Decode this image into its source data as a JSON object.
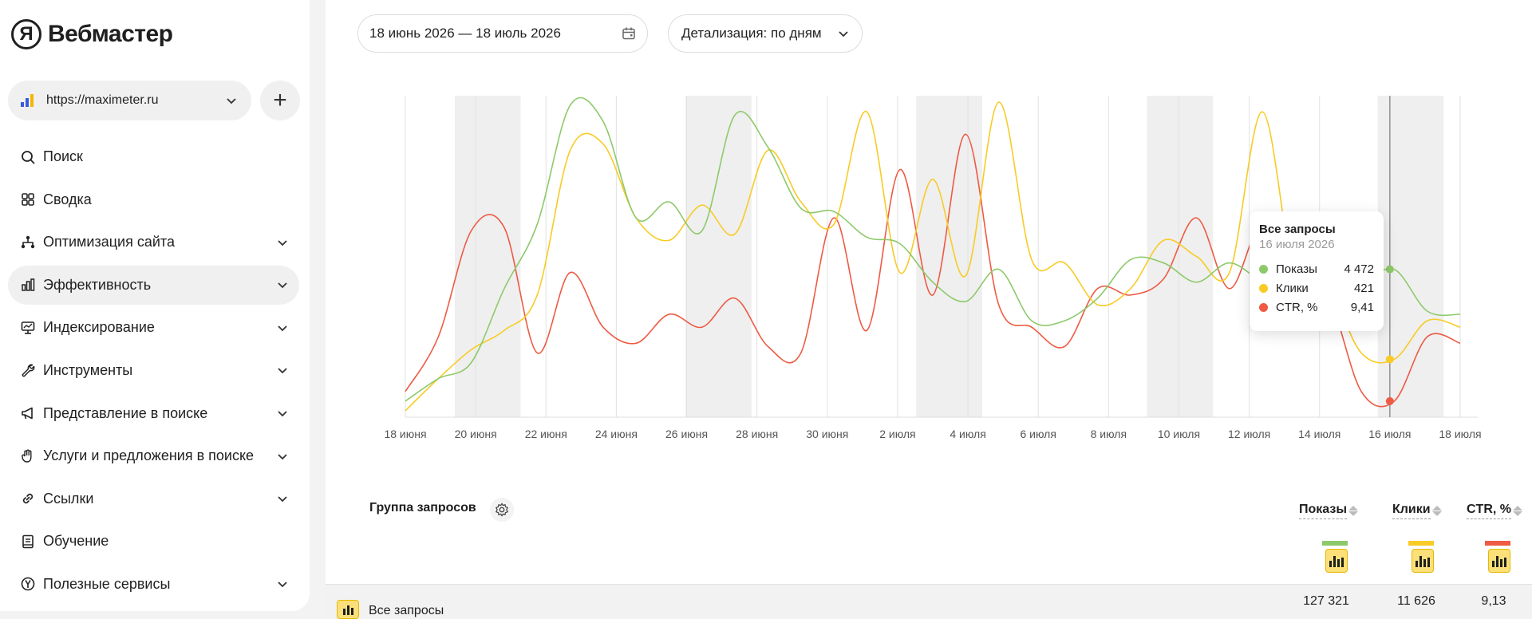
{
  "app": {
    "logo_letter": "Я",
    "logo_text": "Вебмастер"
  },
  "site": {
    "url": "https://maximeter.ru"
  },
  "nav": [
    {
      "label": "Поиск",
      "icon": "search-icon",
      "expandable": false,
      "active": false
    },
    {
      "label": "Сводка",
      "icon": "grid-icon",
      "expandable": false,
      "active": false
    },
    {
      "label": "Оптимизация сайта",
      "icon": "sitemap-icon",
      "expandable": true,
      "active": false
    },
    {
      "label": "Эффективность",
      "icon": "bar-chart-icon",
      "expandable": true,
      "active": true
    },
    {
      "label": "Индексирование",
      "icon": "monitor-icon",
      "expandable": true,
      "active": false
    },
    {
      "label": "Инструменты",
      "icon": "wrench-icon",
      "expandable": true,
      "active": false
    },
    {
      "label": "Представление в поиске",
      "icon": "megaphone-icon",
      "expandable": true,
      "active": false
    },
    {
      "label": "Услуги и предложения в поиске",
      "icon": "hand-icon",
      "expandable": true,
      "active": false
    },
    {
      "label": "Ссылки",
      "icon": "link-icon",
      "expandable": true,
      "active": false
    },
    {
      "label": "Обучение",
      "icon": "book-icon",
      "expandable": false,
      "active": false
    },
    {
      "label": "Полезные сервисы",
      "icon": "yandex-circle-icon",
      "expandable": true,
      "active": false
    }
  ],
  "filters": {
    "date_range": "18 июнь 2026 — 18 июль 2026",
    "detail": "Детализация: по дням"
  },
  "chart_data": {
    "type": "line",
    "x_tick_labels": [
      "18 июня",
      "20 июня",
      "22 июня",
      "24 июня",
      "26 июня",
      "28 июня",
      "30 июня",
      "2 июля",
      "4 июля",
      "6 июля",
      "8 июля",
      "10 июля",
      "12 июля",
      "14 июля",
      "16 июля",
      "18 июля"
    ],
    "weekend_shading": true,
    "grid": true,
    "colors": {
      "shows": "#8dc96a",
      "clicks": "#f8cb26",
      "ctr": "#ee5a43"
    },
    "series": [
      {
        "name": "Показы",
        "key": "shows",
        "values": [
          5,
          12,
          17,
          40,
          60,
          97,
          92,
          62,
          67,
          58,
          94,
          84,
          65,
          64,
          56,
          54,
          42,
          36,
          46,
          30,
          30,
          37,
          49,
          48,
          42,
          48,
          42,
          38,
          42,
          42,
          46,
          33,
          32
        ]
      },
      {
        "name": "Клики",
        "key": "clicks",
        "values": [
          2,
          12,
          21,
          27,
          38,
          83,
          85,
          62,
          55,
          66,
          57,
          83,
          67,
          60,
          95,
          45,
          74,
          44,
          98,
          49,
          48,
          35,
          40,
          55,
          50,
          45,
          95,
          42,
          40,
          20,
          18,
          30,
          28
        ]
      },
      {
        "name": "CTR, %",
        "key": "ctr",
        "values": [
          8,
          25,
          58,
          59,
          20,
          45,
          28,
          23,
          32,
          28,
          37,
          22,
          20,
          62,
          27,
          77,
          38,
          88,
          35,
          28,
          22,
          40,
          38,
          43,
          62,
          40,
          60,
          38,
          37,
          8,
          5,
          25,
          23
        ]
      }
    ],
    "tooltip": {
      "title": "Все запросы",
      "date": "16 июля 2026",
      "rows": [
        {
          "name": "Показы",
          "value": "4 472",
          "color": "#8dc96a"
        },
        {
          "name": "Клики",
          "value": "421",
          "color": "#f8cb26"
        },
        {
          "name": "CTR, %",
          "value": "9,41",
          "color": "#ee5a43"
        }
      ]
    }
  },
  "table": {
    "group_header": "Группа запросов",
    "columns": [
      {
        "label": "Показы",
        "color": "#8dc96a"
      },
      {
        "label": "Клики",
        "color": "#f8cb26"
      },
      {
        "label": "CTR, %",
        "color": "#ee5a43"
      }
    ],
    "rows": [
      {
        "name": "Все запросы",
        "values": [
          "127 321",
          "11 626",
          "9,13"
        ]
      }
    ]
  }
}
